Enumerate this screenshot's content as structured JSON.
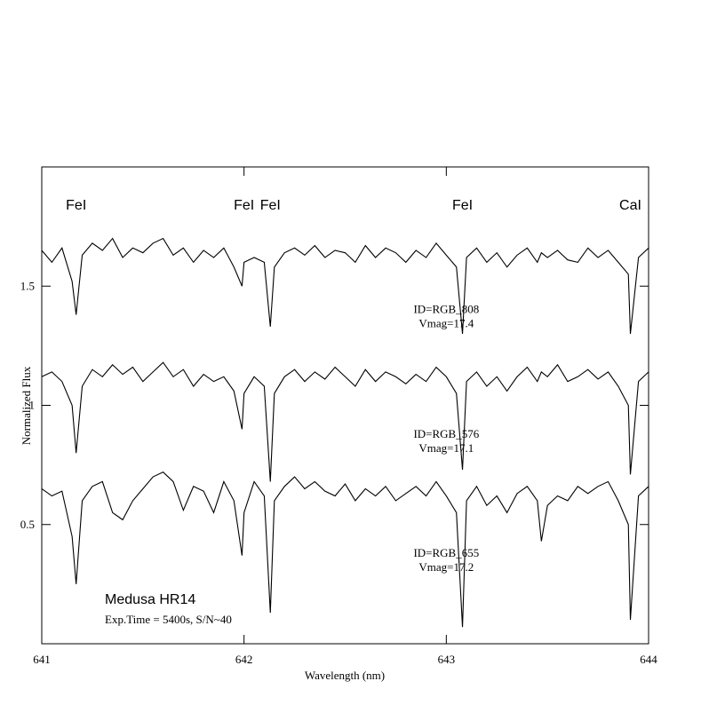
{
  "chart_data": {
    "type": "line",
    "x_label": "Wavelength (nm)",
    "y_label": "Normalized Flux",
    "x": [
      641.0,
      641.05,
      641.1,
      641.15,
      641.17,
      641.2,
      641.25,
      641.3,
      641.35,
      641.4,
      641.45,
      641.5,
      641.55,
      641.6,
      641.65,
      641.7,
      641.75,
      641.8,
      641.85,
      641.9,
      641.95,
      641.99,
      642.0,
      642.05,
      642.1,
      642.13,
      642.15,
      642.2,
      642.25,
      642.3,
      642.35,
      642.4,
      642.45,
      642.5,
      642.55,
      642.6,
      642.65,
      642.7,
      642.75,
      642.8,
      642.85,
      642.9,
      642.95,
      643.0,
      643.05,
      643.08,
      643.1,
      643.15,
      643.2,
      643.25,
      643.3,
      643.35,
      643.4,
      643.45,
      643.47,
      643.5,
      643.55,
      643.6,
      643.65,
      643.7,
      643.75,
      643.8,
      643.85,
      643.9,
      643.91,
      643.95,
      644.0
    ],
    "series": [
      {
        "name": "ID=RGB_808",
        "magnitude": "Vmag=17.4",
        "color": "#000000",
        "values": [
          1.65,
          1.6,
          1.66,
          1.52,
          1.38,
          1.63,
          1.68,
          1.65,
          1.7,
          1.62,
          1.66,
          1.64,
          1.68,
          1.7,
          1.63,
          1.66,
          1.6,
          1.65,
          1.62,
          1.66,
          1.58,
          1.5,
          1.6,
          1.62,
          1.6,
          1.33,
          1.58,
          1.64,
          1.66,
          1.63,
          1.67,
          1.62,
          1.65,
          1.64,
          1.6,
          1.67,
          1.62,
          1.66,
          1.64,
          1.6,
          1.65,
          1.62,
          1.68,
          1.63,
          1.58,
          1.3,
          1.62,
          1.66,
          1.6,
          1.64,
          1.58,
          1.63,
          1.66,
          1.6,
          1.64,
          1.62,
          1.65,
          1.61,
          1.6,
          1.66,
          1.62,
          1.65,
          1.6,
          1.55,
          1.3,
          1.62,
          1.66
        ]
      },
      {
        "name": "ID=RGB_576",
        "magnitude": "Vmag=17.1",
        "color": "#000000",
        "values": [
          1.12,
          1.14,
          1.1,
          1.0,
          0.8,
          1.08,
          1.15,
          1.12,
          1.17,
          1.13,
          1.16,
          1.1,
          1.14,
          1.18,
          1.12,
          1.15,
          1.08,
          1.13,
          1.1,
          1.12,
          1.06,
          0.9,
          1.05,
          1.12,
          1.08,
          0.68,
          1.05,
          1.12,
          1.15,
          1.1,
          1.14,
          1.11,
          1.16,
          1.12,
          1.08,
          1.15,
          1.1,
          1.14,
          1.12,
          1.09,
          1.13,
          1.1,
          1.16,
          1.12,
          1.05,
          0.73,
          1.1,
          1.14,
          1.08,
          1.12,
          1.06,
          1.12,
          1.16,
          1.1,
          1.14,
          1.12,
          1.17,
          1.1,
          1.12,
          1.15,
          1.11,
          1.14,
          1.08,
          1.0,
          0.71,
          1.1,
          1.14
        ]
      },
      {
        "name": "ID=RGB_655",
        "magnitude": "Vmag=17.2",
        "color": "#000000",
        "values": [
          0.65,
          0.62,
          0.64,
          0.45,
          0.25,
          0.6,
          0.66,
          0.68,
          0.55,
          0.52,
          0.6,
          0.65,
          0.7,
          0.72,
          0.68,
          0.56,
          0.66,
          0.64,
          0.55,
          0.68,
          0.6,
          0.37,
          0.55,
          0.68,
          0.62,
          0.13,
          0.6,
          0.66,
          0.7,
          0.65,
          0.68,
          0.64,
          0.62,
          0.67,
          0.6,
          0.65,
          0.62,
          0.66,
          0.6,
          0.63,
          0.66,
          0.62,
          0.68,
          0.62,
          0.55,
          0.07,
          0.6,
          0.66,
          0.58,
          0.62,
          0.55,
          0.63,
          0.66,
          0.6,
          0.43,
          0.58,
          0.62,
          0.6,
          0.66,
          0.63,
          0.66,
          0.68,
          0.6,
          0.5,
          0.1,
          0.62,
          0.66
        ]
      }
    ],
    "annotations": [
      {
        "text": "FeI",
        "x": 641.17,
        "y": 1.84
      },
      {
        "text": "FeI",
        "x": 642.0,
        "y": 1.84
      },
      {
        "text": "FeI",
        "x": 642.13,
        "y": 1.84
      },
      {
        "text": "FeI",
        "x": 643.08,
        "y": 1.84
      },
      {
        "text": "CaI",
        "x": 643.91,
        "y": 1.84
      }
    ],
    "instrument": "Medusa HR14",
    "exposure": "Exp.Time = 5400s, S/N~40",
    "xlim": [
      641,
      644
    ],
    "ylim": [
      0,
      2
    ],
    "xticks": [
      641,
      642,
      643,
      644
    ],
    "yticks": [
      0.5,
      1,
      1.5
    ]
  }
}
